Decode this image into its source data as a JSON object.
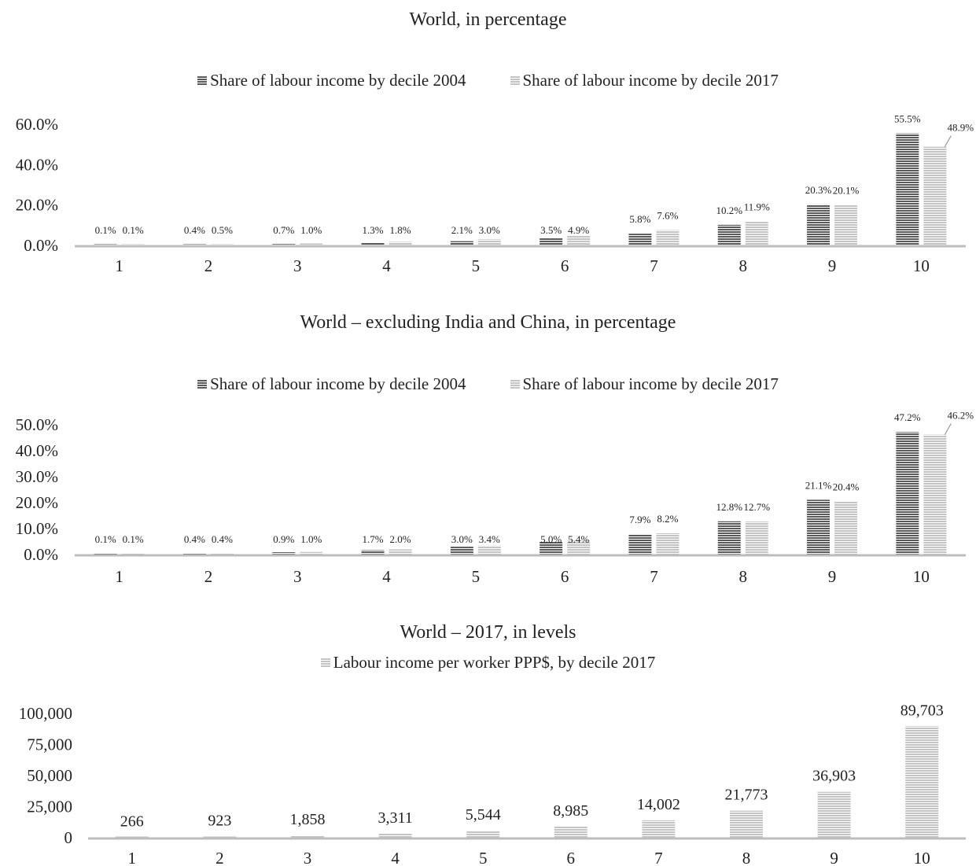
{
  "colors": {
    "dark": "#5a5a5a",
    "light": "#c4c4c4",
    "axis": "#bdbdbd"
  },
  "chart_data": [
    {
      "type": "bar",
      "title": "World, in percentage",
      "categories": [
        "1",
        "2",
        "3",
        "4",
        "5",
        "6",
        "7",
        "8",
        "9",
        "10"
      ],
      "series": [
        {
          "name": "Share of labour income by decile 2004",
          "values": [
            0.1,
            0.4,
            0.7,
            1.3,
            2.1,
            3.5,
            5.8,
            10.2,
            20.3,
            55.5
          ],
          "labels": [
            "0.1%",
            "0.4%",
            "0.7%",
            "1.3%",
            "2.1%",
            "3.5%",
            "5.8%",
            "10.2%",
            "20.3%",
            "55.5%"
          ]
        },
        {
          "name": "Share of labour income by decile 2017",
          "values": [
            0.1,
            0.5,
            1.0,
            1.8,
            3.0,
            4.9,
            7.6,
            11.9,
            20.1,
            48.9
          ],
          "labels": [
            "0.1%",
            "0.5%",
            "1.0%",
            "1.8%",
            "3.0%",
            "4.9%",
            "7.6%",
            "11.9%",
            "20.1%",
            "48.9%"
          ]
        }
      ],
      "yticks": [
        "0.0%",
        "20.0%",
        "40.0%",
        "60.0%"
      ],
      "ylim": [
        0,
        60
      ],
      "legend": "top-center",
      "grid": false
    },
    {
      "type": "bar",
      "title": "World – excluding India and China, in percentage",
      "categories": [
        "1",
        "2",
        "3",
        "4",
        "5",
        "6",
        "7",
        "8",
        "9",
        "10"
      ],
      "series": [
        {
          "name": "Share of labour income by decile 2004",
          "values": [
            0.1,
            0.4,
            0.9,
            1.7,
            3.0,
            5.0,
            7.9,
            12.8,
            21.1,
            47.2
          ],
          "labels": [
            "0.1%",
            "0.4%",
            "0.9%",
            "1.7%",
            "3.0%",
            "5.0%",
            "7.9%",
            "12.8%",
            "21.1%",
            "47.2%"
          ]
        },
        {
          "name": "Share of labour income by decile 2017",
          "values": [
            0.1,
            0.4,
            1.0,
            2.0,
            3.4,
            5.4,
            8.2,
            12.7,
            20.4,
            46.2
          ],
          "labels": [
            "0.1%",
            "0.4%",
            "1.0%",
            "2.0%",
            "3.4%",
            "5.4%",
            "8.2%",
            "12.7%",
            "20.4%",
            "46.2%"
          ]
        }
      ],
      "yticks": [
        "0.0%",
        "10.0%",
        "20.0%",
        "30.0%",
        "40.0%",
        "50.0%"
      ],
      "ylim": [
        0,
        50
      ],
      "legend": "top-center",
      "grid": false
    },
    {
      "type": "bar",
      "title": "World – 2017, in levels",
      "categories": [
        "1",
        "2",
        "3",
        "4",
        "5",
        "6",
        "7",
        "8",
        "9",
        "10"
      ],
      "series": [
        {
          "name": "Labour income per worker PPP$, by decile 2017",
          "values": [
            266,
            923,
            1858,
            3311,
            5544,
            8985,
            14002,
            21773,
            36903,
            89703
          ],
          "labels": [
            "266",
            "923",
            "1,858",
            "3,311",
            "5,544",
            "8,985",
            "14,002",
            "21,773",
            "36,903",
            "89,703"
          ]
        }
      ],
      "yticks": [
        "0",
        "25,000",
        "50,000",
        "75,000",
        "100,000"
      ],
      "ylim": [
        0,
        100000
      ],
      "legend": "top-center",
      "grid": false
    }
  ]
}
